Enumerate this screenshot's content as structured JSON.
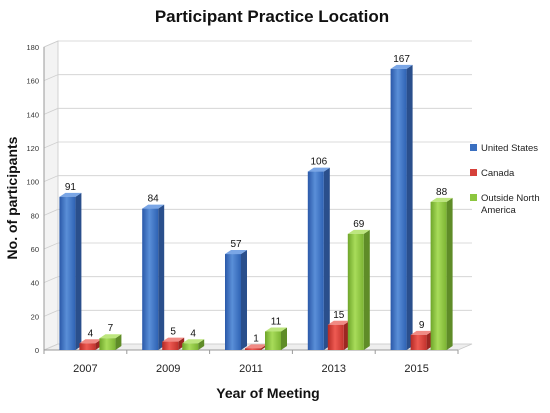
{
  "chart_data": {
    "type": "bar",
    "title": "Participant Practice Location",
    "xlabel": "Year of Meeting",
    "ylabel": "No. of participants",
    "categories": [
      "2007",
      "2009",
      "2011",
      "2013",
      "2015"
    ],
    "ylim": [
      0,
      180
    ],
    "yticks": [
      "0",
      "20",
      "40",
      "60",
      "80",
      "100",
      "120",
      "140",
      "160",
      "180"
    ],
    "grid": true,
    "legend_position": "right",
    "series": [
      {
        "name": "United States",
        "values": [
          91,
          84,
          57,
          106,
          167
        ],
        "labels": [
          "91",
          "84",
          "57",
          "106",
          "167"
        ],
        "color": "#3a6fc0"
      },
      {
        "name": "Canada",
        "values": [
          4,
          5,
          1,
          15,
          9
        ],
        "labels": [
          "4",
          "5",
          "1",
          "15",
          "9"
        ],
        "color": "#d6403a"
      },
      {
        "name": "Outside North America",
        "values": [
          7,
          4,
          11,
          69,
          88
        ],
        "labels": [
          "7",
          "4",
          "11",
          "69",
          "88"
        ],
        "color": "#8cc63f"
      }
    ]
  }
}
